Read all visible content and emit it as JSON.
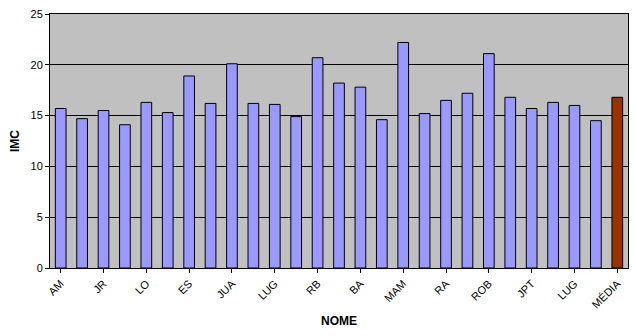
{
  "chart_data": {
    "type": "bar",
    "x_label": "NOME",
    "y_label": "IMC",
    "categories": [
      "AM",
      null,
      "JR",
      null,
      "LO",
      null,
      "ES",
      null,
      "JUA",
      null,
      "LUG",
      null,
      "RB",
      null,
      "BA",
      null,
      "MAM",
      null,
      "RA",
      null,
      "ROB",
      null,
      "JPT",
      null,
      "LUG",
      null,
      "MÉDIA"
    ],
    "values": [
      15.7,
      14.7,
      15.5,
      14.1,
      16.3,
      15.3,
      18.9,
      16.2,
      20.1,
      16.2,
      16.1,
      14.9,
      20.7,
      18.2,
      17.8,
      14.6,
      22.2,
      15.2,
      16.5,
      17.2,
      21.1,
      16.8,
      15.7,
      16.3,
      16.0,
      14.5,
      16.8
    ],
    "colors": [
      "#9999ff",
      "#9999ff",
      "#9999ff",
      "#9999ff",
      "#9999ff",
      "#9999ff",
      "#9999ff",
      "#9999ff",
      "#9999ff",
      "#9999ff",
      "#9999ff",
      "#9999ff",
      "#9999ff",
      "#9999ff",
      "#9999ff",
      "#9999ff",
      "#9999ff",
      "#9999ff",
      "#9999ff",
      "#9999ff",
      "#9999ff",
      "#9999ff",
      "#9999ff",
      "#9999ff",
      "#9999ff",
      "#9999ff",
      "#993300"
    ],
    "ylim": [
      0,
      25
    ],
    "yticks": [
      0,
      5,
      10,
      15,
      20,
      25
    ],
    "grid": true
  }
}
